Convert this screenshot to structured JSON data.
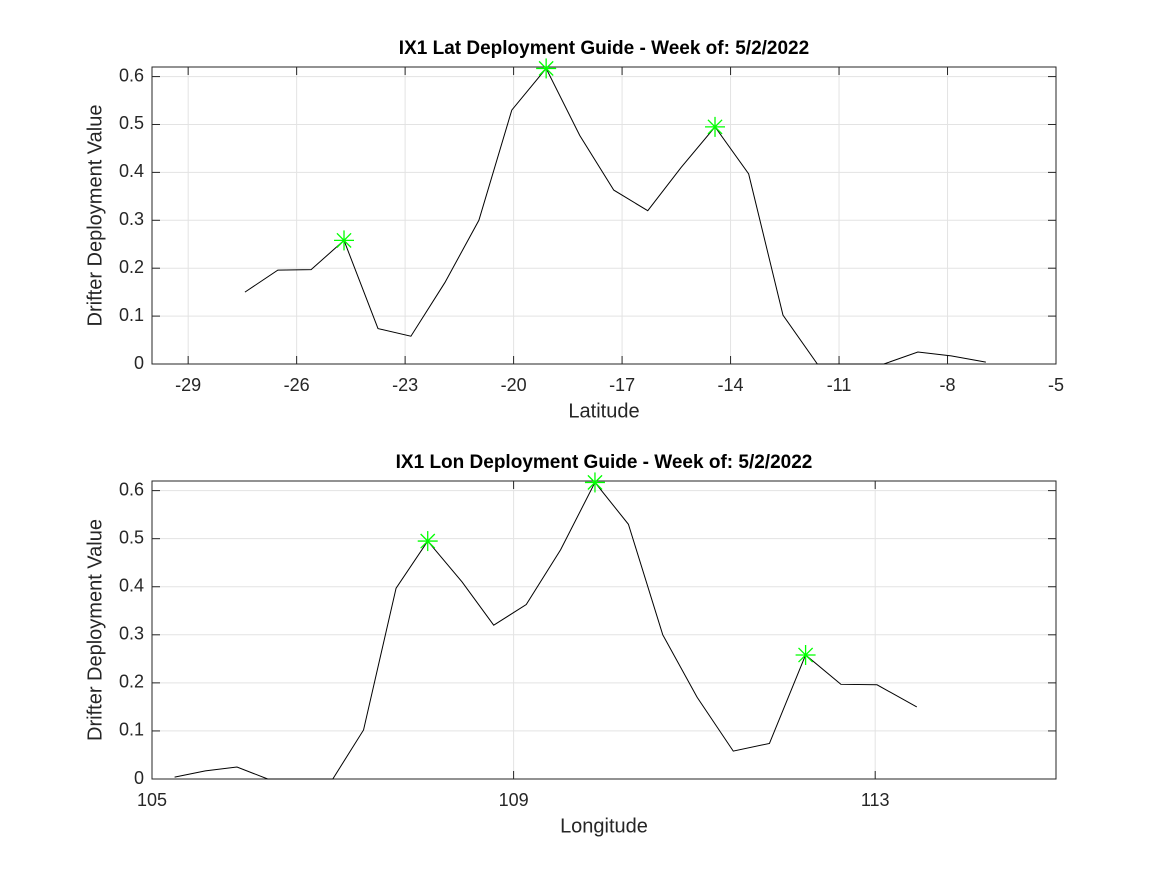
{
  "chart_data": [
    {
      "type": "line",
      "title": "IX1 Lat Deployment Guide - Week of: 5/2/2022",
      "x_label": "Latitude",
      "y_label": "Drifter Deployment Value",
      "x": [
        -27.43,
        -26.52,
        -25.6,
        -24.69,
        -23.75,
        -22.84,
        -21.9,
        -20.96,
        -20.05,
        -19.1,
        -18.17,
        -17.23,
        -16.29,
        -15.37,
        -14.43,
        -13.5,
        -12.55,
        -11.6,
        -10.7,
        -9.76,
        -8.82,
        -7.9,
        -6.94
      ],
      "values": [
        0.15,
        0.196,
        0.197,
        0.258,
        0.074,
        0.058,
        0.17,
        0.3,
        0.53,
        0.617,
        0.477,
        0.363,
        0.32,
        0.41,
        0.495,
        0.397,
        0.102,
        0,
        0,
        0,
        0.025,
        0.017,
        0.004
      ],
      "color": "#000000",
      "highlights": {
        "x": [
          -24.69,
          -19.1,
          -14.43
        ],
        "values": [
          0.258,
          0.617,
          0.495
        ],
        "color": "#00ff00"
      },
      "xlim": [
        -30,
        -5
      ],
      "xticks": [
        -29,
        -26,
        -23,
        -20,
        -17,
        -14,
        -11,
        -8,
        -5
      ],
      "ylim": [
        0,
        0.62
      ],
      "yticks": [
        0,
        0.1,
        0.2,
        0.3,
        0.4,
        0.5,
        0.6
      ],
      "grid": true
    },
    {
      "type": "line",
      "title": "IX1 Lon Deployment Guide - Week of: 5/2/2022",
      "x_label": "Longitude",
      "y_label": "Drifter Deployment Value",
      "x": [
        105.25,
        105.59,
        105.94,
        106.28,
        106.64,
        107.0,
        107.34,
        107.7,
        108.05,
        108.43,
        108.78,
        109.14,
        109.52,
        109.9,
        110.27,
        110.65,
        111.03,
        111.43,
        111.83,
        112.23,
        112.62,
        113.02,
        113.46
      ],
      "values": [
        0.004,
        0.017,
        0.025,
        0,
        0,
        0,
        0.102,
        0.397,
        0.495,
        0.41,
        0.32,
        0.363,
        0.477,
        0.617,
        0.53,
        0.3,
        0.17,
        0.058,
        0.074,
        0.258,
        0.197,
        0.196,
        0.15
      ],
      "color": "#000000",
      "highlights": {
        "x": [
          108.05,
          109.9,
          112.23
        ],
        "values": [
          0.495,
          0.617,
          0.258
        ],
        "color": "#00ff00"
      },
      "xlim": [
        105,
        115
      ],
      "xticks": [
        105,
        109,
        113
      ],
      "ylim": [
        0,
        0.62
      ],
      "yticks": [
        0,
        0.1,
        0.2,
        0.3,
        0.4,
        0.5,
        0.6
      ],
      "grid": true
    }
  ]
}
